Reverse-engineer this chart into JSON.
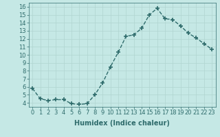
{
  "x": [
    0,
    1,
    2,
    3,
    4,
    5,
    6,
    7,
    8,
    9,
    10,
    11,
    12,
    13,
    14,
    15,
    16,
    17,
    18,
    19,
    20,
    21,
    22,
    23
  ],
  "y": [
    5.8,
    4.5,
    4.3,
    4.4,
    4.4,
    3.9,
    3.8,
    3.9,
    5.0,
    6.5,
    8.5,
    10.3,
    12.3,
    12.5,
    13.3,
    15.0,
    15.8,
    14.5,
    14.4,
    13.6,
    12.7,
    12.1,
    11.4,
    10.7
  ],
  "line_color": "#2e6b6b",
  "marker": "+",
  "marker_size": 4,
  "bg_color": "#c5e8e5",
  "grid_color_major": "#b0d4d0",
  "grid_color_minor": "#d8ecea",
  "xlabel": "Humidex (Indice chaleur)",
  "ylim": [
    3.5,
    16.5
  ],
  "xlim": [
    -0.5,
    23.5
  ],
  "yticks": [
    4,
    5,
    6,
    7,
    8,
    9,
    10,
    11,
    12,
    13,
    14,
    15,
    16
  ],
  "xticks": [
    0,
    1,
    2,
    3,
    4,
    5,
    6,
    7,
    8,
    9,
    10,
    11,
    12,
    13,
    14,
    15,
    16,
    17,
    18,
    19,
    20,
    21,
    22,
    23
  ],
  "xtick_labels": [
    "0",
    "1",
    "2",
    "3",
    "4",
    "5",
    "6",
    "7",
    "8",
    "9",
    "10",
    "11",
    "12",
    "13",
    "14",
    "15",
    "16",
    "17",
    "18",
    "19",
    "20",
    "21",
    "22",
    "23"
  ],
  "xlabel_fontsize": 7,
  "tick_fontsize": 6,
  "linewidth": 1.0,
  "line_style": "--"
}
